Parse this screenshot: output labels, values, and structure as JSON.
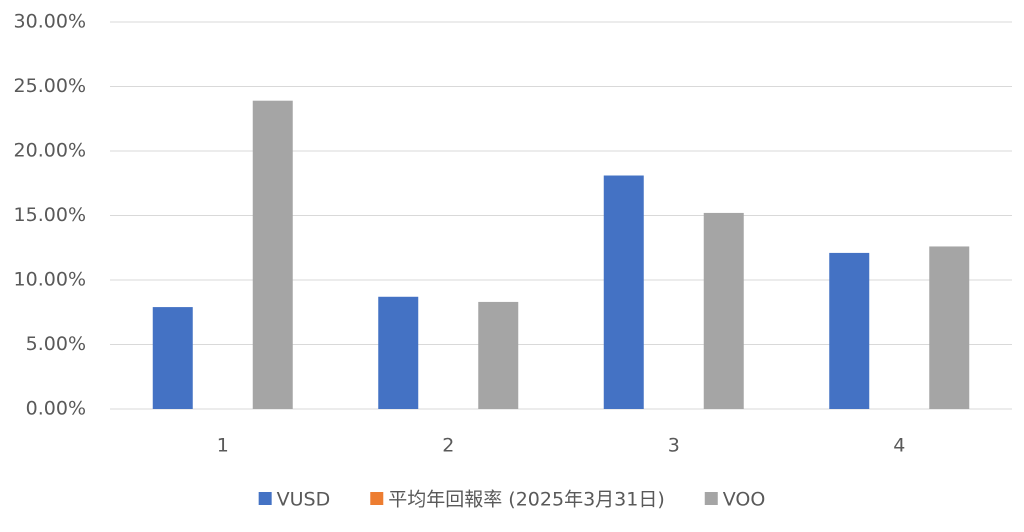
{
  "chart_data": {
    "type": "bar",
    "categories": [
      "1",
      "2",
      "3",
      "4"
    ],
    "series": [
      {
        "name": "VUSD",
        "color": "#4472c4",
        "values": [
          7.9,
          8.7,
          18.1,
          12.1
        ]
      },
      {
        "name": "平均年回報率 (2025年3月31日)",
        "color": "#ed7d31",
        "values": [
          null,
          null,
          null,
          null
        ]
      },
      {
        "name": "VOO",
        "color": "#a5a5a5",
        "values": [
          23.9,
          8.3,
          15.2,
          12.6
        ]
      }
    ],
    "ylim": [
      0,
      30
    ],
    "yticks": [
      {
        "value": 0,
        "label": "0.00%"
      },
      {
        "value": 5,
        "label": "5.00%"
      },
      {
        "value": 10,
        "label": "10.00%"
      },
      {
        "value": 15,
        "label": "15.00%"
      },
      {
        "value": 20,
        "label": "20.00%"
      },
      {
        "value": 25,
        "label": "25.00%"
      },
      {
        "value": 30,
        "label": "30.00%"
      }
    ],
    "grid": true,
    "legend": "bottom"
  }
}
